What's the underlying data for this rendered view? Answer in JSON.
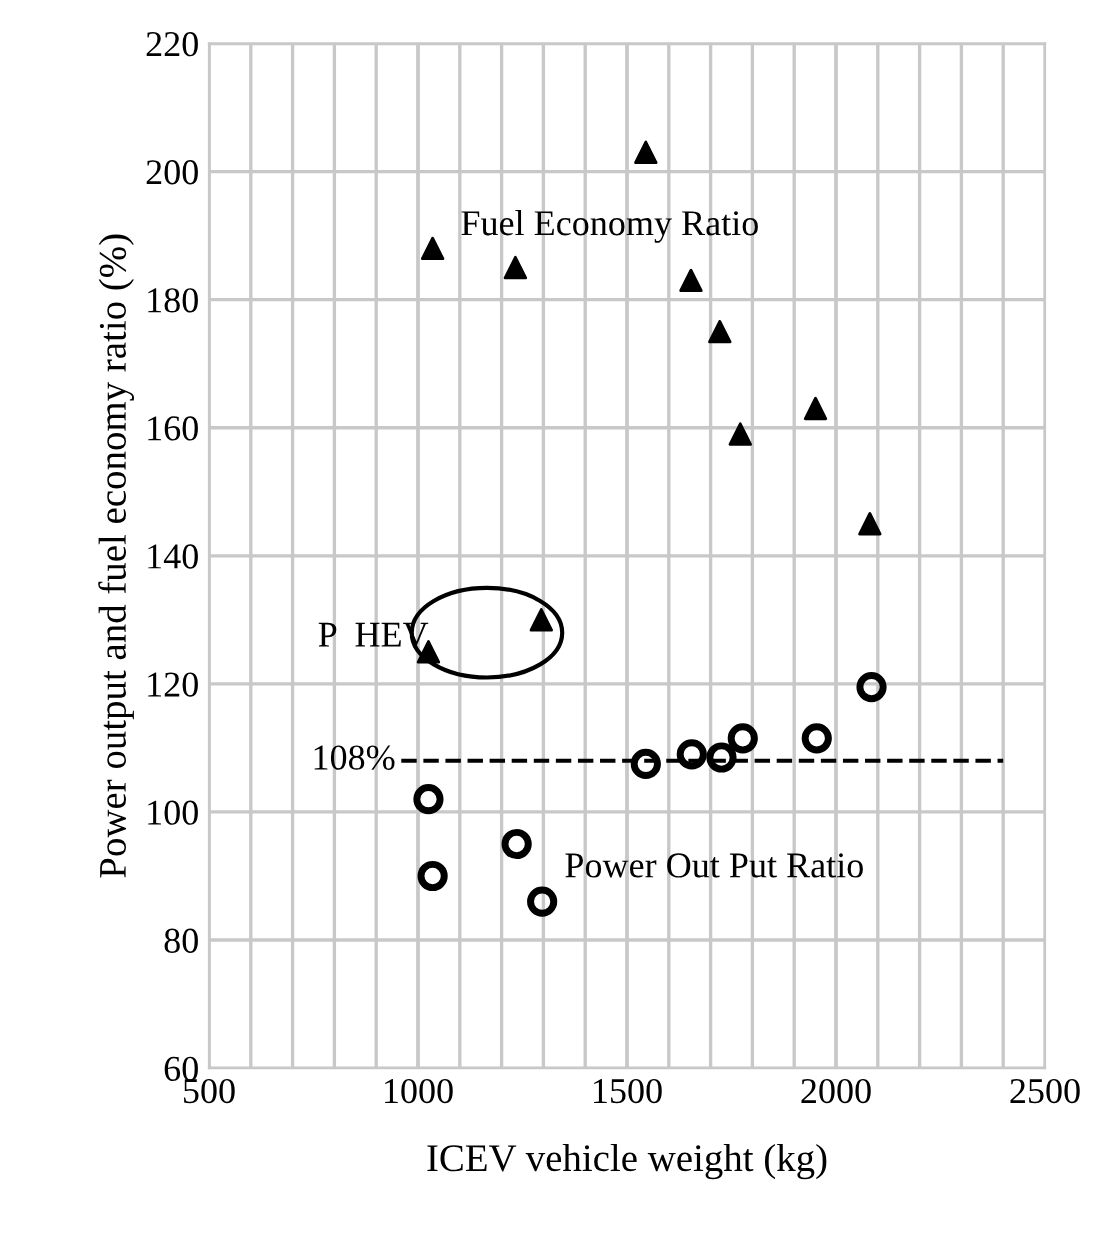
{
  "chart_data": {
    "type": "scatter",
    "xlabel": "ICEV vehicle weight (kg)",
    "ylabel": "Power output and fuel economy ratio (%)",
    "xlim": [
      500,
      2500
    ],
    "xticks": [
      500,
      1000,
      1500,
      2000,
      2500
    ],
    "ylim": [
      60,
      220
    ],
    "yticks": [
      60,
      80,
      100,
      120,
      140,
      160,
      180,
      200,
      220
    ],
    "grid": true,
    "series": [
      {
        "name": "Fuel Economy Ratio",
        "color": "#000000",
        "marker": "triangle",
        "x": [
          1025,
          1035,
          1233,
          1295,
          1545,
          1653,
          1722,
          1771,
          1951,
          2081
        ],
        "values": [
          125,
          188,
          185,
          130,
          203,
          183,
          175,
          159,
          163,
          145
        ]
      },
      {
        "name": "Power Out Put Ratio",
        "color": "#000000",
        "marker": "circle",
        "x": [
          1025,
          1035,
          1236,
          1297,
          1545,
          1655,
          1726,
          1777,
          1954,
          2085
        ],
        "values": [
          102,
          90,
          95,
          86,
          107.5,
          109,
          108.5,
          111.5,
          111.5,
          119.5
        ]
      }
    ],
    "ref_lines": [
      {
        "axis": "y",
        "value": 108,
        "label": "108%",
        "line_style": "dashed",
        "color": "#000000"
      }
    ],
    "annotations": [
      "P  HEV"
    ]
  }
}
